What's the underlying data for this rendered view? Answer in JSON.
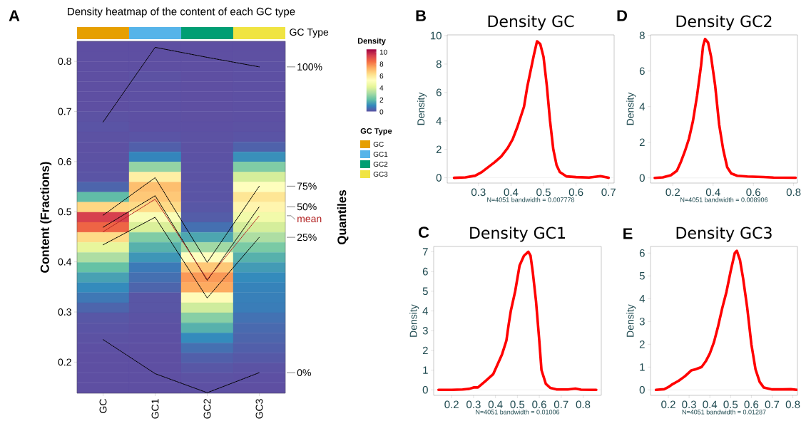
{
  "chart_data": [
    {
      "type": "heatmap",
      "title": "Density heatmap of the content of each GC type",
      "ylabel": "Content (Fractions)",
      "y2label": "Quantiles",
      "legend_title": "GC Type",
      "clabel": "Density",
      "legend": "right",
      "line_style": "dashed",
      "categories": [
        "GC",
        "GC1",
        "GC2",
        "GC3"
      ],
      "colors": [
        "#E69F00",
        "#56B4E9",
        "#009E73",
        "#F0E442"
      ],
      "cells": [
        [
          0,
          0,
          0,
          0
        ],
        [
          0,
          0,
          0,
          0.01
        ],
        [
          0,
          0,
          0,
          0.03
        ],
        [
          0,
          0.05,
          0,
          0.02
        ],
        [
          0,
          0.02,
          0,
          0.02
        ],
        [
          0,
          0.02,
          0,
          0.02
        ],
        [
          0,
          0.02,
          0,
          0.02
        ],
        [
          0.05,
          0.02,
          0.01,
          0.02
        ],
        [
          0.1,
          0.02,
          0.02,
          0.05
        ],
        [
          0.05,
          0.1,
          0.05,
          0.1
        ],
        [
          0.03,
          0.3,
          0.05,
          0.35
        ],
        [
          0.05,
          1.0,
          0.06,
          1.2
        ],
        [
          0.06,
          2.8,
          0.08,
          2.5
        ],
        [
          0.1,
          5.8,
          0.08,
          3.9
        ],
        [
          0.4,
          7.0,
          0.1,
          5.2
        ],
        [
          2.0,
          6.8,
          0.1,
          6.1
        ],
        [
          6.5,
          6.4,
          0.15,
          5.6
        ],
        [
          9.4,
          5.0,
          0.25,
          4.7
        ],
        [
          8.6,
          4.0,
          0.6,
          3.9
        ],
        [
          6.4,
          2.5,
          1.6,
          3.2
        ],
        [
          4.3,
          1.8,
          3.0,
          2.4
        ],
        [
          3.2,
          1.3,
          5.2,
          1.8
        ],
        [
          2.1,
          0.8,
          6.8,
          1.4
        ],
        [
          1.5,
          0.6,
          7.7,
          1.1
        ],
        [
          1.1,
          0.4,
          7.4,
          0.95
        ],
        [
          0.75,
          0.12,
          5.4,
          0.9
        ],
        [
          0.4,
          0.12,
          3.8,
          0.85
        ],
        [
          0.15,
          0.08,
          2.6,
          0.65
        ],
        [
          0.1,
          0.04,
          1.8,
          0.5
        ],
        [
          0.05,
          0.02,
          1.1,
          0.4
        ],
        [
          0.02,
          0.01,
          0.6,
          0.3
        ],
        [
          0,
          0,
          0.3,
          0.18
        ],
        [
          0,
          0,
          0.15,
          0.08
        ],
        [
          0,
          0,
          0.05,
          0.02
        ],
        [
          0,
          0,
          0.02,
          0
        ]
      ],
      "clim": [
        0,
        10.5
      ],
      "cticks": [
        0,
        2,
        4,
        6,
        8,
        10
      ],
      "ylim": [
        0.138,
        0.84
      ],
      "yticks": [
        0.2,
        0.3,
        0.4,
        0.5,
        0.6,
        0.7,
        0.8
      ],
      "series": [
        {
          "name": "100%",
          "type": "line",
          "color": "#000000",
          "values": [
            0.679,
            0.828,
            0.808,
            0.789
          ]
        },
        {
          "name": "75%",
          "type": "line",
          "color": "#000000",
          "values": [
            0.493,
            0.568,
            0.399,
            0.551
          ]
        },
        {
          "name": "50%",
          "type": "line",
          "color": "#000000",
          "values": [
            0.469,
            0.532,
            0.363,
            0.51
          ]
        },
        {
          "name": "mean",
          "type": "line",
          "color": "#B22222",
          "values": [
            0.46,
            0.525,
            0.365,
            0.492
          ]
        },
        {
          "name": "25%",
          "type": "line",
          "color": "#000000",
          "values": [
            0.434,
            0.489,
            0.328,
            0.449
          ]
        },
        {
          "name": "0%",
          "type": "line",
          "color": "#000000",
          "values": [
            0.245,
            0.177,
            0.139,
            0.179
          ]
        }
      ],
      "annotations": [
        "A"
      ]
    },
    {
      "type": "line",
      "title": "Density GC",
      "xlabel": "N=4051 bandwidth = 0.007778",
      "ylabel": "Density",
      "color": "#FF0000",
      "x": [
        0.225,
        0.26,
        0.29,
        0.31,
        0.33,
        0.35,
        0.37,
        0.39,
        0.405,
        0.42,
        0.44,
        0.45,
        0.46,
        0.47,
        0.48,
        0.49,
        0.5,
        0.51,
        0.52,
        0.53,
        0.54,
        0.55,
        0.57,
        0.6,
        0.64,
        0.675,
        0.7
      ],
      "values": [
        0,
        0.03,
        0.15,
        0.4,
        0.75,
        1.1,
        1.5,
        2.1,
        2.7,
        3.6,
        5.0,
        6.4,
        7.5,
        8.6,
        9.6,
        9.4,
        8.5,
        6.5,
        4.0,
        2.0,
        0.9,
        0.4,
        0.1,
        0.05,
        0.02,
        0.12,
        0
      ],
      "xlim": [
        0.204,
        0.717
      ],
      "ylim": [
        -0.37,
        10.05
      ],
      "xticks": [
        0.3,
        0.4,
        0.5,
        0.6,
        0.7
      ],
      "yticks": [
        0,
        2,
        4,
        6,
        8,
        10
      ],
      "ref_lines": [
        {
          "axis": "y",
          "value": 0,
          "color": "#E6E6E6"
        }
      ],
      "annotations": [
        "B"
      ]
    },
    {
      "type": "line",
      "title": "Density GC2",
      "xlabel": "N=4051 bandwidth = 0.008906",
      "ylabel": "Density",
      "color": "#FF0000",
      "x": [
        0.11,
        0.15,
        0.19,
        0.22,
        0.24,
        0.26,
        0.28,
        0.3,
        0.32,
        0.34,
        0.35,
        0.36,
        0.375,
        0.39,
        0.41,
        0.43,
        0.45,
        0.47,
        0.49,
        0.52,
        0.57,
        0.65,
        0.7,
        0.81
      ],
      "values": [
        0,
        0.03,
        0.15,
        0.4,
        0.9,
        1.5,
        2.2,
        3.2,
        4.6,
        6.3,
        7.4,
        7.8,
        7.6,
        6.8,
        5.2,
        3.0,
        1.6,
        0.6,
        0.25,
        0.12,
        0.08,
        0.05,
        0.02,
        0.01
      ],
      "xlim": [
        0.089,
        0.819
      ],
      "ylim": [
        -0.29,
        8.03
      ],
      "xticks": [
        0.2,
        0.4,
        0.6,
        0.8
      ],
      "yticks": [
        0,
        2,
        4,
        6,
        8
      ],
      "ref_lines": [
        {
          "axis": "y",
          "value": 0,
          "color": "#E6E6E6"
        }
      ],
      "annotations": [
        "D"
      ]
    },
    {
      "type": "line",
      "title": "Density GC1",
      "xlabel": "N=4051 bandwidth = 0.01006",
      "ylabel": "Density",
      "color": "#FF0000",
      "x": [
        0.14,
        0.2,
        0.25,
        0.28,
        0.3,
        0.32,
        0.35,
        0.37,
        0.39,
        0.41,
        0.43,
        0.45,
        0.46,
        0.47,
        0.49,
        0.51,
        0.53,
        0.55,
        0.56,
        0.57,
        0.585,
        0.6,
        0.61,
        0.63,
        0.65,
        0.68,
        0.73,
        0.765,
        0.79,
        0.86
      ],
      "values": [
        0,
        0,
        0.02,
        0.05,
        0.12,
        0.12,
        0.4,
        0.6,
        0.8,
        1.3,
        1.8,
        2.5,
        3.3,
        4.0,
        5.0,
        6.3,
        6.8,
        7.0,
        6.8,
        6.0,
        4.5,
        2.5,
        1.0,
        0.3,
        0.1,
        0.02,
        0.02,
        0.06,
        0.01,
        0
      ],
      "xlim": [
        0.118,
        0.883
      ],
      "ylim": [
        -0.28,
        7.27
      ],
      "xticks": [
        0.2,
        0.3,
        0.4,
        0.5,
        0.6,
        0.7,
        0.8
      ],
      "yticks": [
        0,
        1,
        2,
        3,
        4,
        5,
        6,
        7
      ],
      "ref_lines": [
        {
          "axis": "y",
          "value": 0,
          "color": "#E6E6E6"
        }
      ],
      "annotations": [
        "C"
      ]
    },
    {
      "type": "line",
      "title": "Density GC3",
      "xlabel": "N=4051 bandwidth = 0.01287",
      "ylabel": "Density",
      "color": "#FF0000",
      "x": [
        0.14,
        0.18,
        0.2,
        0.22,
        0.25,
        0.28,
        0.31,
        0.33,
        0.36,
        0.38,
        0.4,
        0.42,
        0.44,
        0.46,
        0.48,
        0.5,
        0.52,
        0.53,
        0.545,
        0.56,
        0.58,
        0.6,
        0.62,
        0.64,
        0.66,
        0.7,
        0.75,
        0.79,
        0.82
      ],
      "values": [
        0,
        0.03,
        0.12,
        0.25,
        0.4,
        0.6,
        0.85,
        0.9,
        1.0,
        1.25,
        1.6,
        2.1,
        2.8,
        3.6,
        4.3,
        5.2,
        6.0,
        6.1,
        5.7,
        4.9,
        3.6,
        2.0,
        0.9,
        0.35,
        0.1,
        0.02,
        0.02,
        0.03,
        0
      ],
      "xlim": [
        0.114,
        0.822
      ],
      "ylim": [
        -0.24,
        6.29
      ],
      "xticks": [
        0.2,
        0.3,
        0.4,
        0.5,
        0.6,
        0.7,
        0.8
      ],
      "yticks": [
        0,
        1,
        2,
        3,
        4,
        5,
        6
      ],
      "ref_lines": [
        {
          "axis": "y",
          "value": 0,
          "color": "#E6E6E6"
        }
      ],
      "annotations": [
        "E"
      ]
    }
  ]
}
